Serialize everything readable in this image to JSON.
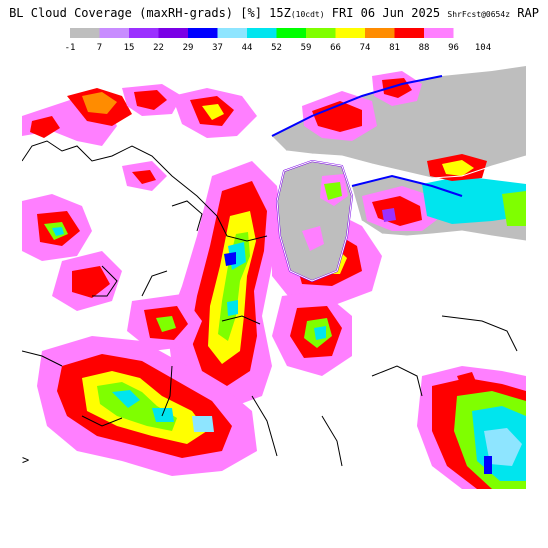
{
  "header": {
    "title_main": "BL Cloud Coverage (maxRH-grads) [%] 15Z",
    "title_local": "(10cdt)",
    "title_date": "FRI 06 Jun 2025",
    "title_fcst": "ShrFcst@0654z",
    "title_model": "RAP"
  },
  "legend": {
    "ticks": [
      "-1",
      "7",
      "15",
      "22",
      "29",
      "37",
      "44",
      "52",
      "59",
      "66",
      "74",
      "81",
      "88",
      "96",
      "104"
    ],
    "colors": [
      "#bebebe",
      "#c88cff",
      "#9b30ff",
      "#7a00e6",
      "#0000ff",
      "#8ee5ff",
      "#00e5ee",
      "#00ff00",
      "#7fff00",
      "#ffff00",
      "#ff8c00",
      "#ff0000",
      "#ff7fff"
    ]
  },
  "map": {
    "land_color": "#ffffff",
    "lake_color": "#bebebe",
    "edge_marker": ">"
  }
}
